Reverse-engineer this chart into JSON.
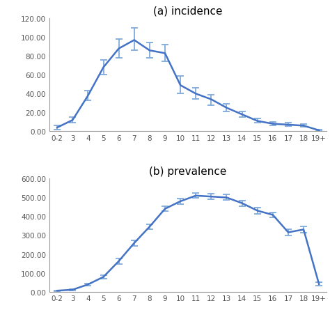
{
  "categories": [
    "0-2",
    "3",
    "4",
    "5",
    "6",
    "7",
    "8",
    "9",
    "10",
    "11",
    "12",
    "13",
    "14",
    "15",
    "16",
    "17",
    "18",
    "19+"
  ],
  "incidence": {
    "values": [
      4.0,
      12.0,
      38.0,
      68.0,
      88.0,
      97.0,
      86.0,
      83.0,
      49.0,
      40.0,
      34.0,
      25.0,
      18.0,
      11.0,
      8.0,
      7.0,
      6.0,
      1.0
    ],
    "ci_upper": [
      6.0,
      15.0,
      43.0,
      76.0,
      98.0,
      110.0,
      94.0,
      92.0,
      59.0,
      46.0,
      39.0,
      29.0,
      21.0,
      13.5,
      10.0,
      9.0,
      8.0,
      2.0
    ],
    "ci_lower": [
      2.0,
      9.0,
      33.0,
      60.0,
      78.0,
      86.0,
      78.0,
      74.0,
      40.0,
      34.0,
      28.0,
      21.0,
      15.0,
      9.0,
      6.5,
      5.5,
      4.5,
      0.2
    ],
    "ylim": [
      0,
      120
    ],
    "yticks": [
      0,
      20,
      40,
      60,
      80,
      100,
      120
    ],
    "title": "(a) incidence"
  },
  "prevalence": {
    "values": [
      5.0,
      10.0,
      38.0,
      78.0,
      162.0,
      258.0,
      345.0,
      440.0,
      480.0,
      510.0,
      505.0,
      500.0,
      470.0,
      430.0,
      408.0,
      315.0,
      330.0,
      40.0
    ],
    "ci_upper": [
      7.0,
      13.0,
      43.0,
      87.0,
      175.0,
      272.0,
      358.0,
      453.0,
      493.0,
      524.0,
      519.0,
      516.0,
      485.0,
      445.0,
      422.0,
      332.0,
      348.0,
      50.0
    ],
    "ci_lower": [
      3.0,
      7.0,
      33.0,
      68.0,
      148.0,
      244.0,
      332.0,
      428.0,
      466.0,
      497.0,
      492.0,
      486.0,
      455.0,
      414.0,
      393.0,
      298.0,
      313.0,
      30.0
    ],
    "ylim": [
      0,
      600
    ],
    "yticks": [
      0,
      100,
      200,
      300,
      400,
      500,
      600
    ],
    "title": "(b) prevalence"
  },
  "line_color": "#4472c4",
  "ci_color": "#7faadc",
  "background_color": "#ffffff"
}
